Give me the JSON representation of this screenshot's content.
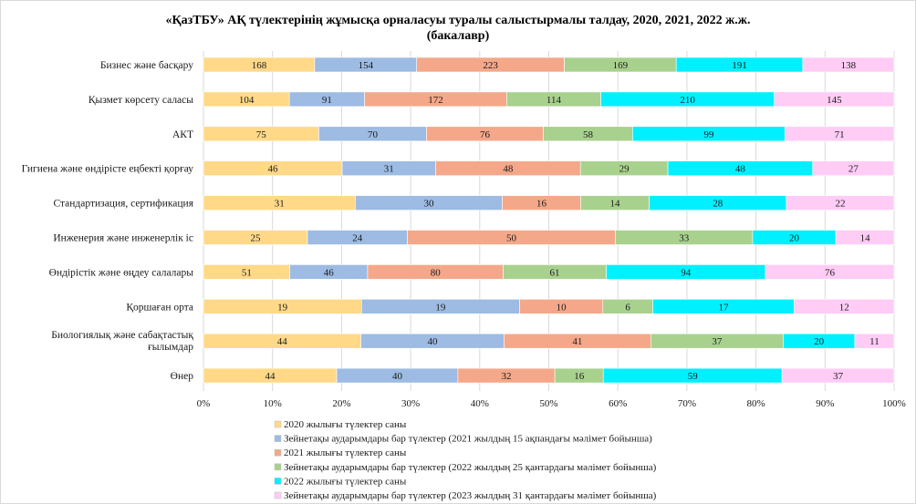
{
  "chart_data": {
    "type": "bar",
    "orientation": "horizontal",
    "stacking": "percent",
    "title_lines": [
      "«ҚазТБУ» АҚ түлектерінің жұмысқа орналасуы туралы салыстырмалы талдау, 2020, 2021, 2022 ж.ж.",
      "(бакалавр)"
    ],
    "categories": [
      [
        "Бизнес және басқару"
      ],
      [
        "Қызмет көрсету саласы"
      ],
      [
        "АКТ"
      ],
      [
        "Гигиена және өндірісте еңбекті қорғау"
      ],
      [
        "Стандартизация, сертификация"
      ],
      [
        "Инженерия және инженерлік іс"
      ],
      [
        "Өндірістік және өңдеу салалары"
      ],
      [
        "Қоршаған орта"
      ],
      [
        "Биологиялық және сабақтастық",
        "ғылымдар"
      ],
      [
        "Өнер"
      ]
    ],
    "series": [
      {
        "name": "2020 жылығы түлектер саны",
        "color": "#FFD988",
        "values": [
          168,
          104,
          75,
          46,
          31,
          25,
          51,
          19,
          44,
          44
        ]
      },
      {
        "name": "Зейнетақы аударымдары бар түлектер (2021 жылдың 15 ақпандағы мәлімет бойынша)",
        "color": "#9DBBE3",
        "values": [
          154,
          91,
          70,
          31,
          30,
          24,
          46,
          19,
          40,
          40
        ]
      },
      {
        "name": "2021 жылығы түлектер саны",
        "color": "#F4A889",
        "values": [
          223,
          172,
          76,
          48,
          16,
          50,
          80,
          10,
          41,
          32
        ]
      },
      {
        "name": "Зейнетақы аударымдары бар түлектер (2022 жылдың 25 қантардағы мәлімет бойынша)",
        "color": "#A9D18E",
        "values": [
          169,
          114,
          58,
          29,
          14,
          33,
          61,
          6,
          37,
          16
        ]
      },
      {
        "name": "2022 жылығы түлектер саны",
        "color": "#00F0FF",
        "values": [
          191,
          210,
          99,
          48,
          28,
          20,
          94,
          17,
          20,
          59
        ]
      },
      {
        "name": "Зейнетақы аударымдары бар түлектер (2023 жылдың 31 қантардағы мәлімет бойынша)",
        "color": "#FFCCF5",
        "values": [
          138,
          145,
          71,
          27,
          22,
          14,
          76,
          12,
          11,
          37
        ]
      }
    ],
    "xticks": [
      "0%",
      "10%",
      "20%",
      "30%",
      "40%",
      "50%",
      "60%",
      "70%",
      "80%",
      "90%",
      "100%"
    ],
    "xlim": [
      0,
      100
    ],
    "grid": "vertical",
    "legend_position": "bottom-left"
  }
}
